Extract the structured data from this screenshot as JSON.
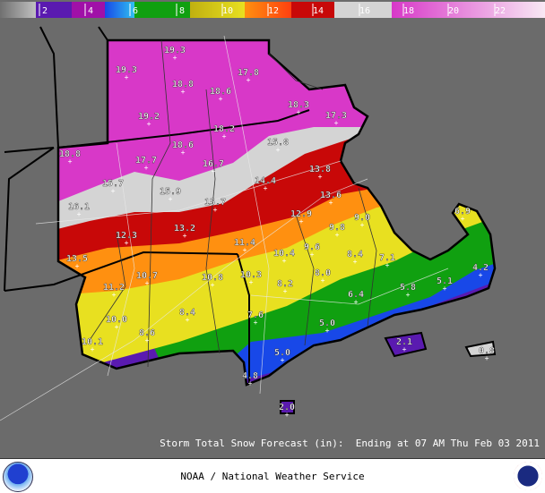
{
  "legend": {
    "ticks": [
      "2",
      "4",
      "6",
      "8",
      "10",
      "12",
      "14",
      "16",
      "18",
      "20",
      "22"
    ],
    "colors": {
      "gray": "#a8a8a8",
      "purple": "#5a1ab0",
      "magenta": "#a010a8",
      "blue": "#1848e8",
      "cyan": "#30c0f0",
      "green": "#10a010",
      "yellow": "#e8e020",
      "orange": "#ff9010",
      "red": "#c80808",
      "lightgray": "#d4d4d4",
      "pink": "#d838c8",
      "white": "#f8e8f4"
    }
  },
  "map": {
    "background": "#6b6b6b",
    "snow_totals": [
      "19.3",
      "19.3",
      "18.8",
      "18.6",
      "17.8",
      "19.2",
      "18.3",
      "17.3",
      "18.2",
      "18.8",
      "18.6",
      "17.7",
      "15.8",
      "16.7",
      "13.8",
      "15.7",
      "15.9",
      "14.4",
      "16.1",
      "15.7",
      "13.6",
      "12.9",
      "9.0",
      "13.2",
      "12.3",
      "9.8",
      "11.4",
      "9.6",
      "10.4",
      "13.5",
      "8.4",
      "7.1",
      "10.3",
      "8.0",
      "11.2",
      "10.7",
      "10.8",
      "8.2",
      "6.4",
      "5.8",
      "5.1",
      "4.2",
      "6.9",
      "10.0",
      "8.4",
      "7.6",
      "8.6",
      "5.0",
      "10.1",
      "2.1",
      "5.0",
      "0.8",
      "4.8",
      "2.0"
    ]
  },
  "caption": "Storm Total Snow Forecast (in):  Ending at 07 AM Thu Feb 03 2011",
  "footer": {
    "agency": "NOAA / National Weather Service",
    "left_logo": "NOAA",
    "right_logo": "National Weather Service"
  }
}
